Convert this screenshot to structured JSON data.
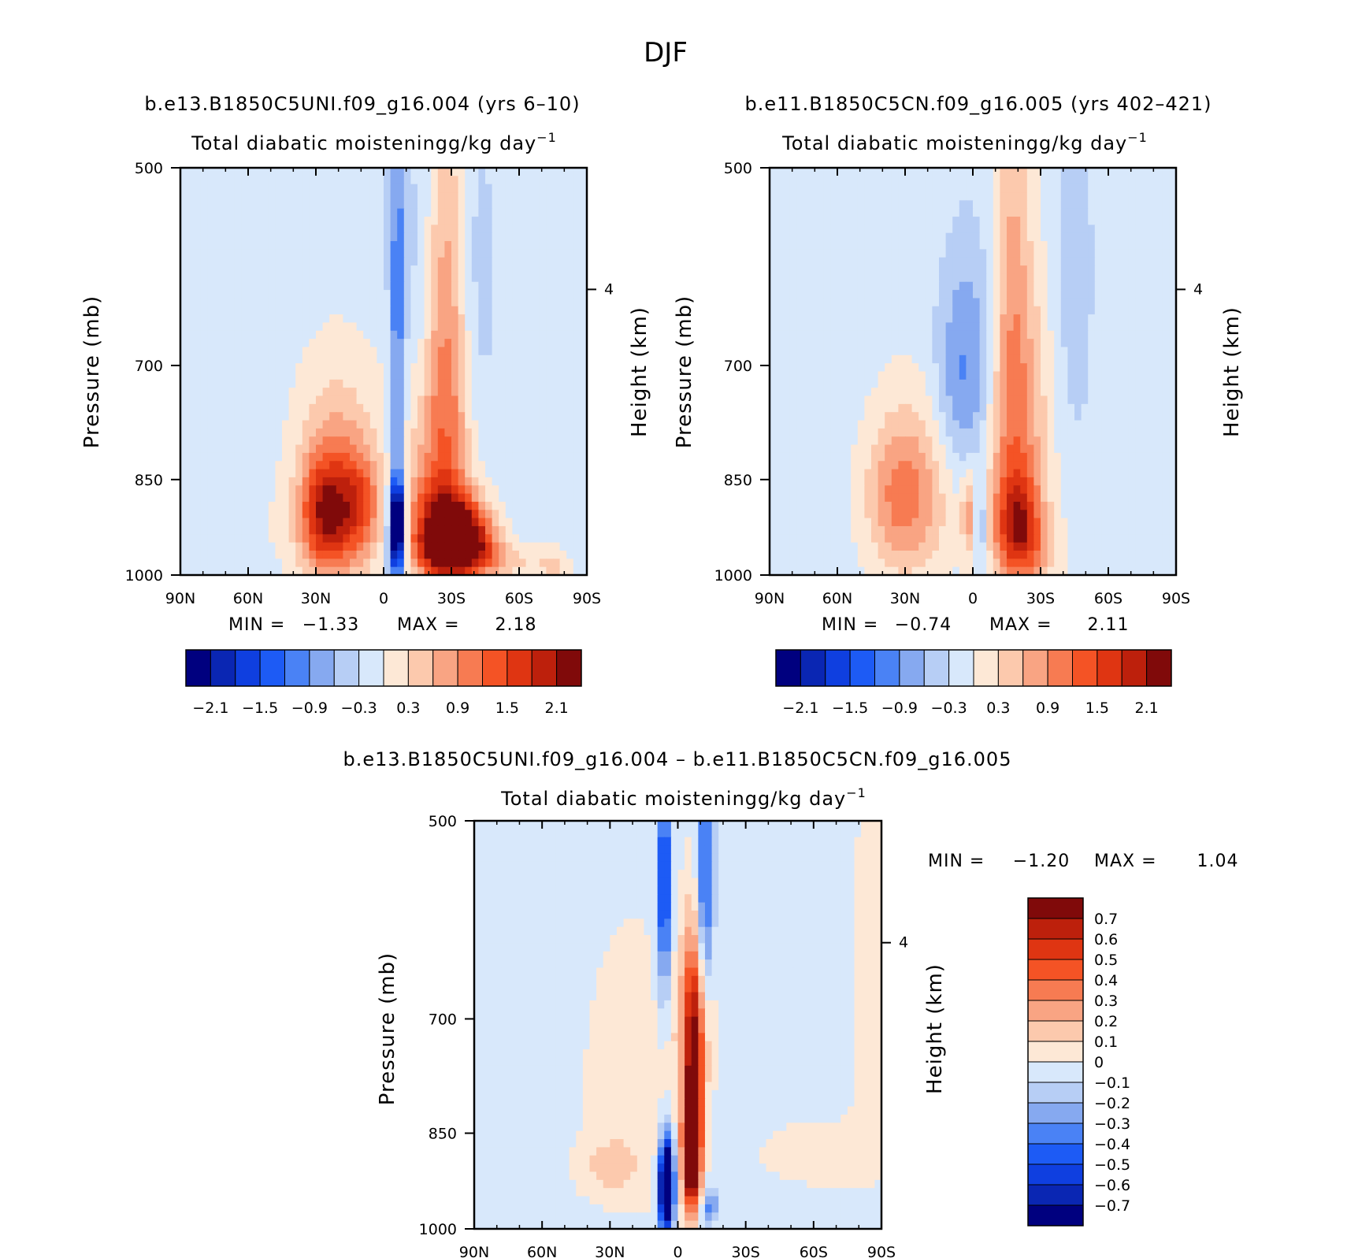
{
  "page_title": "DJF",
  "colors": {
    "main": [
      "#00007f",
      "#0a26b3",
      "#0f3fe0",
      "#1d5bf5",
      "#4a82f5",
      "#86a9f0",
      "#b7cef5",
      "#d8e8fb",
      "#fde8d6",
      "#fcc9ad",
      "#f9a483",
      "#f77b52",
      "#f45325",
      "#df3512",
      "#bd200c",
      "#800a0a"
    ],
    "diff": [
      "#00007f",
      "#0a26b3",
      "#0f3fe0",
      "#1d5bf5",
      "#4a82f5",
      "#86a9f0",
      "#b7cef5",
      "#d8e8fb",
      "#fde8d6",
      "#fcc9ad",
      "#f9a483",
      "#f77b52",
      "#f45325",
      "#df3512",
      "#bd200c",
      "#800a0a"
    ]
  },
  "chart_data": [
    {
      "id": "panel1",
      "type": "heatmap",
      "run_title": "b.e13.B1850C5UNI.f09_g16.004 (yrs 6–10)",
      "title": "Total diabatic moistening",
      "units": "g/kg day",
      "units_exp": "−1",
      "xlabel": "",
      "ylabel": "Pressure (mb)",
      "y2label": "Height (km)",
      "x_ticks": [
        "90N",
        "60N",
        "30N",
        "0",
        "30S",
        "60S",
        "90S"
      ],
      "y_ticks": [
        "500",
        "700",
        "850",
        "1000"
      ],
      "y2_ticks": [
        "4"
      ],
      "ylim": [
        1000,
        500
      ],
      "min_label": "MIN =",
      "min_value": "−1.33",
      "max_label": "MAX =",
      "max_value": "2.18",
      "colorbar_levels": [
        -2.1,
        -1.8,
        -1.5,
        -1.2,
        -0.9,
        -0.6,
        -0.3,
        0,
        0.3,
        0.6,
        0.9,
        1.2,
        1.5,
        1.8,
        2.1
      ],
      "colorbar_tick_labels": [
        "−2.1",
        "−1.5",
        "−0.9",
        "−0.3",
        "0.3",
        "0.9",
        "1.5",
        "2.1"
      ],
      "field": [
        {
          "lat": -35,
          "p": 940,
          "a": 2.3,
          "sx": 9,
          "sy": 40
        },
        {
          "lat": -25,
          "p": 930,
          "a": 1.4,
          "sx": 9,
          "sy": 55
        },
        {
          "lat": -25,
          "p": 830,
          "a": 0.9,
          "sx": 11,
          "sy": 110
        },
        {
          "lat": -28,
          "p": 640,
          "a": 0.8,
          "sx": 6,
          "sy": 160
        },
        {
          "lat": -33,
          "p": 960,
          "a": 0.9,
          "sx": 13,
          "sy": 25
        },
        {
          "lat": -55,
          "p": 980,
          "a": 0.45,
          "sx": 10,
          "sy": 18
        },
        {
          "lat": -6,
          "p": 910,
          "a": -2.7,
          "sx": 2.2,
          "sy": 40
        },
        {
          "lat": -6,
          "p": 700,
          "a": -1.0,
          "sx": 2.5,
          "sy": 300
        },
        {
          "lat": -5,
          "p": 960,
          "a": -1.0,
          "sx": 3,
          "sy": 30
        },
        {
          "lat": 22,
          "p": 900,
          "a": 1.7,
          "sx": 10,
          "sy": 75
        },
        {
          "lat": 20,
          "p": 780,
          "a": 0.45,
          "sx": 14,
          "sy": 90
        },
        {
          "lat": 10,
          "p": 880,
          "a": 0.7,
          "sx": 6,
          "sy": 50
        },
        {
          "lat": 28,
          "p": 900,
          "a": 0.6,
          "sx": 6,
          "sy": 50
        },
        {
          "lat": 18,
          "p": 930,
          "a": 0.2,
          "sx": 30,
          "sy": 60
        },
        {
          "lat": -42,
          "p": 640,
          "a": -0.3,
          "sx": 6,
          "sy": 150
        },
        {
          "lat": -75,
          "p": 990,
          "a": 0.5,
          "sx": 5,
          "sy": 25
        },
        {
          "lat": -15,
          "p": 600,
          "a": -0.25,
          "sx": 4,
          "sy": 120
        }
      ],
      "background": -0.15
    },
    {
      "id": "panel2",
      "type": "heatmap",
      "run_title": "b.e11.B1850C5CN.f09_g16.005 (yrs 402–421)",
      "title": "Total diabatic moistening",
      "units": "g/kg day",
      "units_exp": "−1",
      "xlabel": "",
      "ylabel": "Pressure (mb)",
      "y2label": "Height (km)",
      "x_ticks": [
        "90N",
        "60N",
        "30N",
        "0",
        "30S",
        "60S",
        "90S"
      ],
      "y_ticks": [
        "500",
        "700",
        "850",
        "1000"
      ],
      "y2_ticks": [
        "4"
      ],
      "ylim": [
        1000,
        500
      ],
      "min_label": "MIN =",
      "min_value": "−0.74",
      "max_label": "MAX =",
      "max_value": "2.11",
      "colorbar_levels": [
        -2.1,
        -1.8,
        -1.5,
        -1.2,
        -0.9,
        -0.6,
        -0.3,
        0,
        0.3,
        0.6,
        0.9,
        1.2,
        1.5,
        1.8,
        2.1
      ],
      "colorbar_tick_labels": [
        "−2.1",
        "−1.5",
        "−0.9",
        "−0.3",
        "0.3",
        "0.9",
        "1.5",
        "2.1"
      ],
      "field": [
        {
          "lat": -20,
          "p": 920,
          "a": 1.6,
          "sx": 7,
          "sy": 60
        },
        {
          "lat": -20,
          "p": 780,
          "a": 0.9,
          "sx": 10,
          "sy": 140
        },
        {
          "lat": -17,
          "p": 600,
          "a": 0.65,
          "sx": 6,
          "sy": 180
        },
        {
          "lat": -28,
          "p": 960,
          "a": 0.4,
          "sx": 10,
          "sy": 40
        },
        {
          "lat": 32,
          "p": 880,
          "a": 1.0,
          "sx": 11,
          "sy": 80
        },
        {
          "lat": 18,
          "p": 840,
          "a": 0.4,
          "sx": 16,
          "sy": 110
        },
        {
          "lat": 2,
          "p": 900,
          "a": 0.8,
          "sx": 2,
          "sy": 40
        },
        {
          "lat": -4,
          "p": 920,
          "a": -0.6,
          "sx": 2.2,
          "sy": 50
        },
        {
          "lat": 5,
          "p": 740,
          "a": -0.7,
          "sx": 9,
          "sy": 90
        },
        {
          "lat": -2,
          "p": 660,
          "a": -0.4,
          "sx": 10,
          "sy": 90
        },
        {
          "lat": -45,
          "p": 600,
          "a": -0.35,
          "sx": 6,
          "sy": 150
        },
        {
          "lat": -90,
          "p": 600,
          "a": 0.1,
          "sx": 8,
          "sy": 90
        }
      ],
      "background": -0.15
    },
    {
      "id": "diff",
      "type": "heatmap",
      "run_title": "b.e13.B1850C5UNI.f09_g16.004 – b.e11.B1850C5CN.f09_g16.005",
      "title": "Total diabatic moistening",
      "units": "g/kg day",
      "units_exp": "−1",
      "xlabel": "",
      "ylabel": "Pressure (mb)",
      "y2label": "Height (km)",
      "x_ticks": [
        "90N",
        "60N",
        "30N",
        "0",
        "30S",
        "60S",
        "90S"
      ],
      "y_ticks": [
        "500",
        "700",
        "850",
        "1000"
      ],
      "y2_ticks": [
        "4"
      ],
      "ylim": [
        1000,
        500
      ],
      "min_label": "MIN =",
      "min_value": "−1.20",
      "max_label": "MAX =",
      "max_value": "1.04",
      "colorbar_levels": [
        -0.7,
        -0.6,
        -0.5,
        -0.4,
        -0.3,
        -0.2,
        -0.1,
        0,
        0.1,
        0.2,
        0.3,
        0.4,
        0.5,
        0.6,
        0.7
      ],
      "colorbar_tick_labels": [
        "0.7",
        "0.6",
        "0.5",
        "0.4",
        "0.3",
        "0.2",
        "0.1",
        "0",
        "−0.1",
        "−0.2",
        "−0.3",
        "−0.4",
        "−0.5",
        "−0.6",
        "−0.7"
      ],
      "field": [
        {
          "lat": -6,
          "p": 880,
          "a": 1.0,
          "sx": 2.6,
          "sy": 60
        },
        {
          "lat": -7,
          "p": 760,
          "a": 0.6,
          "sx": 3.2,
          "sy": 110
        },
        {
          "lat": -7,
          "p": 700,
          "a": 0.25,
          "sx": 6,
          "sy": 70
        },
        {
          "lat": 5,
          "p": 930,
          "a": -1.3,
          "sx": 2.2,
          "sy": 50
        },
        {
          "lat": 6,
          "p": 560,
          "a": -0.55,
          "sx": 2.2,
          "sy": 80
        },
        {
          "lat": -12,
          "p": 560,
          "a": -0.45,
          "sx": 2.5,
          "sy": 90
        },
        {
          "lat": -14,
          "p": 960,
          "a": -0.3,
          "sx": 3,
          "sy": 20
        },
        {
          "lat": 20,
          "p": 780,
          "a": 0.1,
          "sx": 18,
          "sy": 160
        },
        {
          "lat": -60,
          "p": 880,
          "a": 0.1,
          "sx": 20,
          "sy": 40
        },
        {
          "lat": -85,
          "p": 650,
          "a": 0.08,
          "sx": 8,
          "sy": 200
        },
        {
          "lat": 30,
          "p": 900,
          "a": 0.15,
          "sx": 10,
          "sy": 30
        }
      ],
      "background": -0.05
    }
  ]
}
